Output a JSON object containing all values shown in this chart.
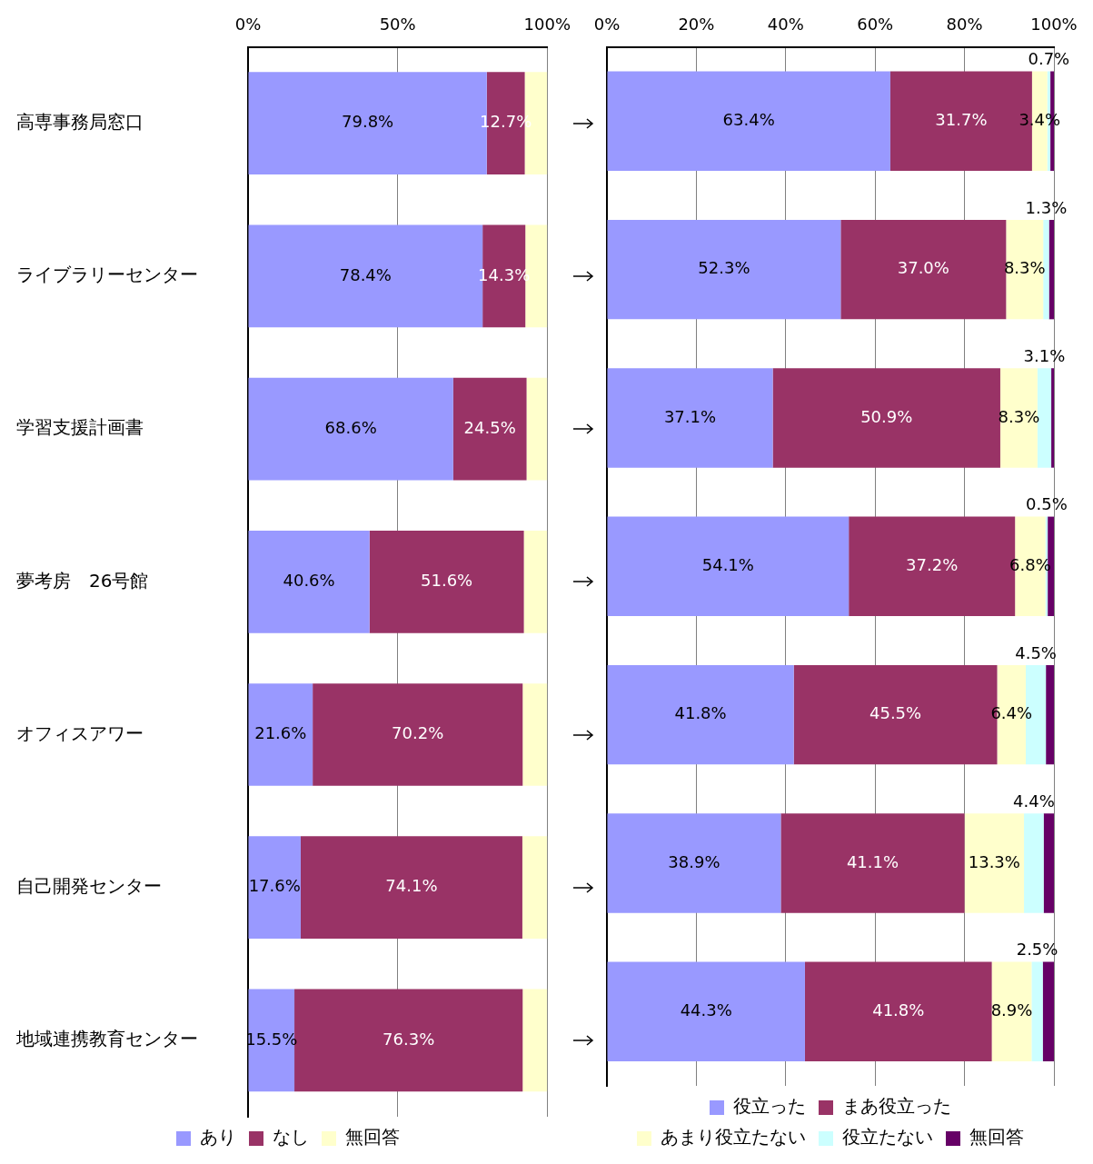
{
  "chart_data": [
    {
      "type": "bar",
      "orientation": "horizontal",
      "stacked": true,
      "categories": [
        "高専事務局窓口",
        "ライブラリーセンター",
        "学習支援計画書",
        "夢考房　26号館",
        "オフィスアワー",
        "自己開発センター",
        "地域連携教育センター"
      ],
      "series": [
        {
          "name": "あり",
          "color": "#9999ff",
          "values": [
            79.8,
            78.4,
            68.6,
            40.6,
            21.6,
            17.6,
            15.5
          ],
          "value_labels": [
            "79.8%",
            "78.4%",
            "68.6%",
            "40.6%",
            "21.6%",
            "17.6%",
            "15.5%"
          ]
        },
        {
          "name": "なし",
          "color": "#993366",
          "values": [
            12.7,
            14.3,
            24.5,
            51.6,
            70.2,
            74.1,
            76.3
          ],
          "value_labels": [
            "12.7%",
            "14.3%",
            "24.5%",
            "51.6%",
            "70.2%",
            "74.1%",
            "76.3%"
          ]
        },
        {
          "name": "無回答",
          "color": "#ffffcc",
          "values": [
            7.5,
            7.3,
            6.9,
            7.8,
            8.2,
            8.3,
            8.2
          ]
        }
      ],
      "xlim": [
        0,
        100
      ],
      "xticks": [
        {
          "value": 0,
          "label": "0%"
        },
        {
          "value": 50,
          "label": "50%"
        },
        {
          "value": 100,
          "label": "100%"
        }
      ],
      "grid": "x",
      "legend": "bottom"
    },
    {
      "type": "bar",
      "orientation": "horizontal",
      "stacked": true,
      "categories": [
        null,
        null,
        null,
        null,
        null,
        null,
        null
      ],
      "series": [
        {
          "name": "役立った",
          "color": "#9999ff",
          "values": [
            63.4,
            52.3,
            37.1,
            54.1,
            41.8,
            38.9,
            44.3
          ],
          "value_labels": [
            "63.4%",
            "52.3%",
            "37.1%",
            "54.1%",
            "41.8%",
            "38.9%",
            "44.3%"
          ]
        },
        {
          "name": "まあ役立った",
          "color": "#993366",
          "values": [
            31.7,
            37.0,
            50.9,
            37.2,
            45.5,
            41.1,
            41.8
          ],
          "value_labels": [
            "31.7%",
            "37.0%",
            "50.9%",
            "37.2%",
            "45.5%",
            "41.1%",
            "41.8%"
          ]
        },
        {
          "name": "あまり役立たない",
          "color": "#ffffcc",
          "values": [
            3.4,
            8.3,
            8.3,
            6.8,
            6.4,
            13.3,
            8.9
          ],
          "value_labels": [
            "3.4%",
            "8.3%",
            "8.3%",
            "6.8%",
            "6.4%",
            "13.3%",
            "8.9%"
          ]
        },
        {
          "name": "役立たない",
          "color": "#ccffff",
          "values": [
            0.7,
            1.3,
            3.1,
            0.5,
            4.5,
            4.4,
            2.5
          ],
          "value_labels": [
            "0.7%",
            "1.3%",
            "3.1%",
            "0.5%",
            "4.5%",
            "4.4%",
            "2.5%"
          ]
        },
        {
          "name": "無回答",
          "color": "#660066",
          "values": [
            0.8,
            1.1,
            0.6,
            1.4,
            1.8,
            2.3,
            2.5
          ]
        }
      ],
      "xlim": [
        0,
        100
      ],
      "xticks": [
        {
          "value": 0,
          "label": "0%"
        },
        {
          "value": 20,
          "label": "20%"
        },
        {
          "value": 40,
          "label": "40%"
        },
        {
          "value": 60,
          "label": "60%"
        },
        {
          "value": 80,
          "label": "80%"
        },
        {
          "value": 100,
          "label": "100%"
        }
      ],
      "grid": "x",
      "legend": "bottom",
      "tick_labels": "x"
    }
  ]
}
